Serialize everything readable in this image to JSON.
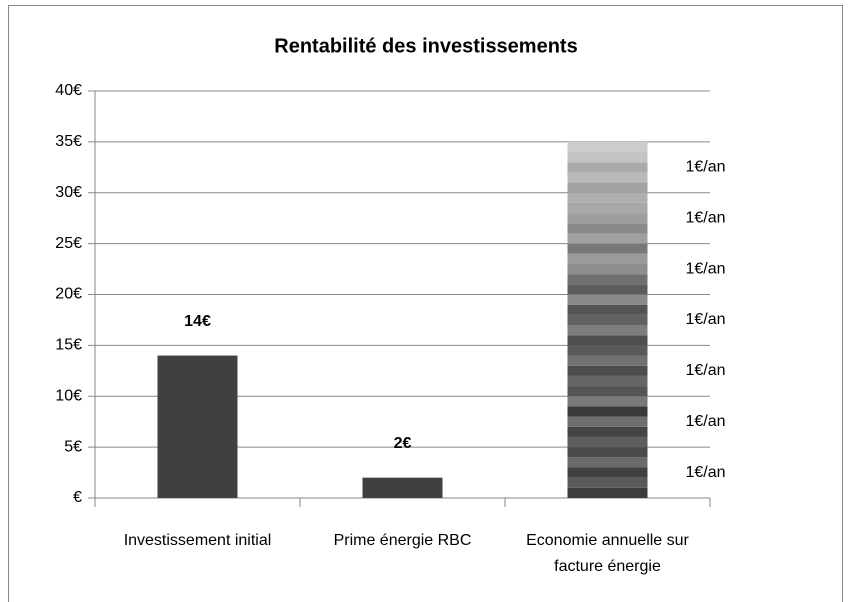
{
  "chart_data": {
    "type": "bar",
    "stacked": true,
    "title": "Rentabilité des investissements",
    "categories": [
      "Investissement initial",
      "Prime énergie RBC",
      "Economie annuelle sur facture énergie"
    ],
    "ylim": [
      0,
      40
    ],
    "yticks": [
      {
        "value": 0,
        "label": "€"
      },
      {
        "value": 5,
        "label": "5€"
      },
      {
        "value": 10,
        "label": "10€"
      },
      {
        "value": 15,
        "label": "15€"
      },
      {
        "value": 20,
        "label": "20€"
      },
      {
        "value": 25,
        "label": "25€"
      },
      {
        "value": 30,
        "label": "30€"
      },
      {
        "value": 35,
        "label": "35€"
      },
      {
        "value": 40,
        "label": "40€"
      }
    ],
    "grid": true,
    "series": [
      {
        "color": "#404040",
        "values": [
          14,
          2,
          null
        ],
        "value_labels": [
          "14€",
          "2€",
          null
        ]
      },
      {
        "color": "#3c3c3c",
        "values": [
          null,
          null,
          1
        ]
      },
      {
        "color": "#5a5a5a",
        "values": [
          null,
          null,
          1
        ]
      },
      {
        "color": "#404040",
        "values": [
          null,
          null,
          1
        ],
        "value_labels": [
          null,
          null,
          "1€/an"
        ]
      },
      {
        "color": "#6a6a6a",
        "values": [
          null,
          null,
          1
        ]
      },
      {
        "color": "#4a4a4a",
        "values": [
          null,
          null,
          1
        ]
      },
      {
        "color": "#5e5e5e",
        "values": [
          null,
          null,
          1
        ]
      },
      {
        "color": "#454545",
        "values": [
          null,
          null,
          1
        ]
      },
      {
        "color": "#6e6e6e",
        "values": [
          null,
          null,
          1
        ],
        "value_labels": [
          null,
          null,
          "1€/an"
        ]
      },
      {
        "color": "#3a3a3a",
        "values": [
          null,
          null,
          1
        ]
      },
      {
        "color": "#7a7a7a",
        "values": [
          null,
          null,
          1
        ]
      },
      {
        "color": "#555555",
        "values": [
          null,
          null,
          1
        ]
      },
      {
        "color": "#666666",
        "values": [
          null,
          null,
          1
        ]
      },
      {
        "color": "#4c4c4c",
        "values": [
          null,
          null,
          1
        ],
        "value_labels": [
          null,
          null,
          "1€/an"
        ]
      },
      {
        "color": "#727272",
        "values": [
          null,
          null,
          1
        ]
      },
      {
        "color": "#5a5a5a",
        "values": [
          null,
          null,
          1
        ]
      },
      {
        "color": "#4e4e4e",
        "values": [
          null,
          null,
          1
        ]
      },
      {
        "color": "#7e7e7e",
        "values": [
          null,
          null,
          1
        ]
      },
      {
        "color": "#626262",
        "values": [
          null,
          null,
          1
        ],
        "value_labels": [
          null,
          null,
          "1€/an"
        ]
      },
      {
        "color": "#545454",
        "values": [
          null,
          null,
          1
        ]
      },
      {
        "color": "#8a8a8a",
        "values": [
          null,
          null,
          1
        ]
      },
      {
        "color": "#5c5c5c",
        "values": [
          null,
          null,
          1
        ]
      },
      {
        "color": "#707070",
        "values": [
          null,
          null,
          1
        ]
      },
      {
        "color": "#8e8e8e",
        "values": [
          null,
          null,
          1
        ],
        "value_labels": [
          null,
          null,
          "1€/an"
        ]
      },
      {
        "color": "#9a9a9a",
        "values": [
          null,
          null,
          1
        ]
      },
      {
        "color": "#787878",
        "values": [
          null,
          null,
          1
        ]
      },
      {
        "color": "#a0a0a0",
        "values": [
          null,
          null,
          1
        ]
      },
      {
        "color": "#8a8a8a",
        "values": [
          null,
          null,
          1
        ]
      },
      {
        "color": "#9e9e9e",
        "values": [
          null,
          null,
          1
        ],
        "value_labels": [
          null,
          null,
          "1€/an"
        ]
      },
      {
        "color": "#a8a8a8",
        "values": [
          null,
          null,
          1
        ]
      },
      {
        "color": "#b0b0b0",
        "values": [
          null,
          null,
          1
        ]
      },
      {
        "color": "#a2a2a2",
        "values": [
          null,
          null,
          1
        ]
      },
      {
        "color": "#bababa",
        "values": [
          null,
          null,
          1
        ]
      },
      {
        "color": "#aaaaaa",
        "values": [
          null,
          null,
          1
        ],
        "value_labels": [
          null,
          null,
          "1€/an"
        ]
      },
      {
        "color": "#c4c4c4",
        "values": [
          null,
          null,
          1
        ]
      },
      {
        "color": "#cccccc",
        "values": [
          null,
          null,
          1
        ]
      }
    ]
  }
}
